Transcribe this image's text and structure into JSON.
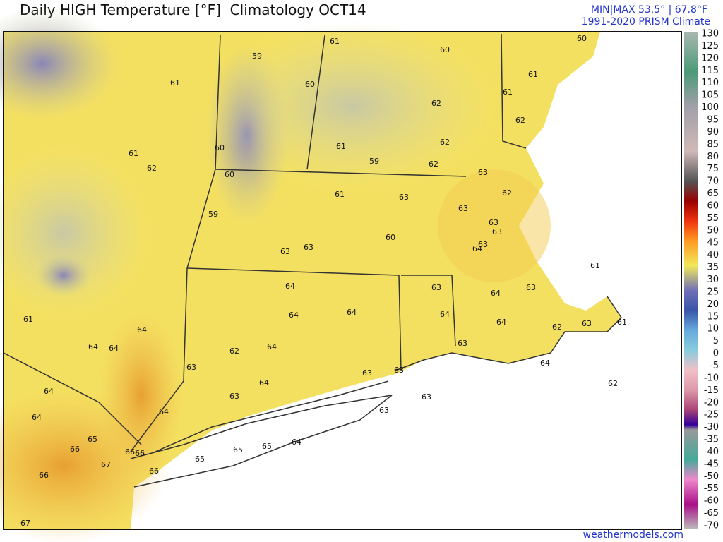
{
  "header": {
    "title": "Daily HIGH Temperature [°F]  Climatology OCT14",
    "minmax": "MIN|MAX 53.5° | 67.8°F",
    "source": "1991-2020 PRISM Climate"
  },
  "colorbar": {
    "labels": [
      130,
      125,
      120,
      115,
      110,
      105,
      100,
      95,
      90,
      85,
      80,
      75,
      70,
      65,
      60,
      55,
      50,
      45,
      40,
      35,
      30,
      25,
      20,
      15,
      10,
      5,
      0,
      -5,
      -10,
      -15,
      -20,
      -25,
      -30,
      -35,
      -40,
      -45,
      -50,
      -55,
      -60,
      -65,
      -70
    ]
  },
  "map": {
    "labels": [
      59,
      61,
      60,
      60,
      61,
      60,
      61,
      61,
      62,
      62,
      61,
      62,
      60,
      61,
      59,
      62,
      62,
      63,
      60,
      62,
      61,
      63,
      63,
      59,
      63,
      63,
      60,
      63,
      64,
      63,
      63,
      61,
      64,
      63,
      63,
      64,
      64,
      64,
      64,
      61,
      64,
      63,
      61,
      62,
      63,
      64,
      64,
      64,
      62,
      64,
      63,
      63,
      63,
      64,
      64,
      62,
      64,
      63,
      63,
      63,
      64,
      64,
      65,
      66,
      66,
      66,
      65,
      65,
      64,
      67,
      65,
      66,
      66,
      67
    ]
  },
  "footer": {
    "credit": "weathermodels.com"
  }
}
